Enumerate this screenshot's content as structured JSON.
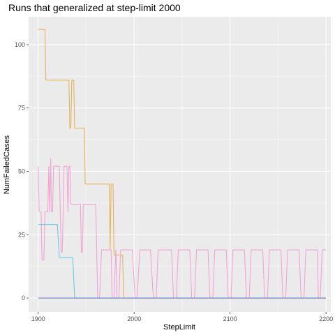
{
  "chart_data": {
    "type": "line",
    "title": "Runs that generalized at step-limit 2000",
    "xlabel": "StepLimit",
    "ylabel": "NumFailedCases",
    "xlim": [
      1890,
      2205
    ],
    "ylim": [
      -5.5,
      111
    ],
    "x_ticks": [
      1900,
      2000,
      2100,
      2200
    ],
    "y_ticks": [
      0,
      25,
      50,
      75,
      100
    ],
    "grid": true,
    "legend": "none",
    "series": [
      {
        "color": "#e6b35a",
        "points": [
          [
            1900,
            106
          ],
          [
            1907,
            106
          ],
          [
            1908,
            86
          ],
          [
            1932,
            86
          ],
          [
            1933,
            67
          ],
          [
            1934,
            67
          ],
          [
            1935,
            86
          ],
          [
            1937,
            86
          ],
          [
            1938,
            67
          ],
          [
            1948,
            67
          ],
          [
            1949,
            45
          ],
          [
            1974,
            45
          ],
          [
            1975,
            19
          ],
          [
            1976,
            45
          ],
          [
            1978,
            45
          ],
          [
            1979,
            17
          ],
          [
            1988,
            17
          ],
          [
            1989,
            0
          ],
          [
            2200,
            0
          ]
        ]
      },
      {
        "color": "#f4a3d5",
        "points": [
          [
            1900,
            52
          ],
          [
            1901,
            34
          ],
          [
            1903,
            34
          ],
          [
            1904,
            15
          ],
          [
            1906,
            15
          ],
          [
            1907,
            34
          ],
          [
            1910,
            34
          ],
          [
            1911,
            52
          ],
          [
            1912,
            34
          ],
          [
            1913,
            55
          ],
          [
            1914,
            34
          ],
          [
            1915,
            34
          ],
          [
            1916,
            52
          ],
          [
            1922,
            52
          ],
          [
            1923,
            34
          ],
          [
            1924,
            18
          ],
          [
            1925,
            18
          ],
          [
            1926,
            34
          ],
          [
            1927,
            52
          ],
          [
            1930,
            52
          ],
          [
            1931,
            34
          ],
          [
            1932,
            52
          ],
          [
            1933,
            52
          ],
          [
            1934,
            37
          ],
          [
            1944,
            37
          ],
          [
            1945,
            18
          ],
          [
            1946,
            18
          ],
          [
            1947,
            37
          ],
          [
            1960,
            37
          ],
          [
            1962,
            0
          ],
          [
            1964,
            0
          ],
          [
            1966,
            19
          ],
          [
            1976,
            19
          ],
          [
            1977,
            0
          ],
          [
            1979,
            0
          ],
          [
            1981,
            19
          ],
          [
            1982,
            0
          ],
          [
            1984,
            0
          ],
          [
            1986,
            19
          ],
          [
            1998,
            19
          ],
          [
            2001,
            0
          ],
          [
            2003,
            0
          ],
          [
            2006,
            19
          ],
          [
            2017,
            19
          ],
          [
            2020,
            0
          ],
          [
            2023,
            0
          ],
          [
            2025,
            19
          ],
          [
            2039,
            19
          ],
          [
            2041,
            0
          ],
          [
            2044,
            0
          ],
          [
            2046,
            19
          ],
          [
            2058,
            19
          ],
          [
            2060,
            0
          ],
          [
            2063,
            0
          ],
          [
            2065,
            19
          ],
          [
            2077,
            19
          ],
          [
            2079,
            0
          ],
          [
            2082,
            0
          ],
          [
            2084,
            19
          ],
          [
            2096,
            19
          ],
          [
            2098,
            0
          ],
          [
            2101,
            0
          ],
          [
            2103,
            19
          ],
          [
            2115,
            19
          ],
          [
            2117,
            0
          ],
          [
            2120,
            0
          ],
          [
            2122,
            19
          ],
          [
            2134,
            19
          ],
          [
            2136,
            0
          ],
          [
            2139,
            0
          ],
          [
            2141,
            19
          ],
          [
            2153,
            19
          ],
          [
            2155,
            0
          ],
          [
            2158,
            0
          ],
          [
            2160,
            19
          ],
          [
            2172,
            19
          ],
          [
            2174,
            0
          ],
          [
            2177,
            0
          ],
          [
            2179,
            19
          ],
          [
            2191,
            19
          ],
          [
            2192,
            0
          ],
          [
            2194,
            0
          ],
          [
            2196,
            19
          ],
          [
            2200,
            19
          ]
        ]
      },
      {
        "color": "#6cc8e2",
        "points": [
          [
            1900,
            29
          ],
          [
            1920,
            29
          ],
          [
            1922,
            16
          ],
          [
            1936,
            16
          ],
          [
            1938,
            0
          ],
          [
            2200,
            0
          ]
        ]
      },
      {
        "color": "#6b7fd7",
        "points": [
          [
            1900,
            0
          ],
          [
            2200,
            0
          ]
        ]
      }
    ]
  }
}
